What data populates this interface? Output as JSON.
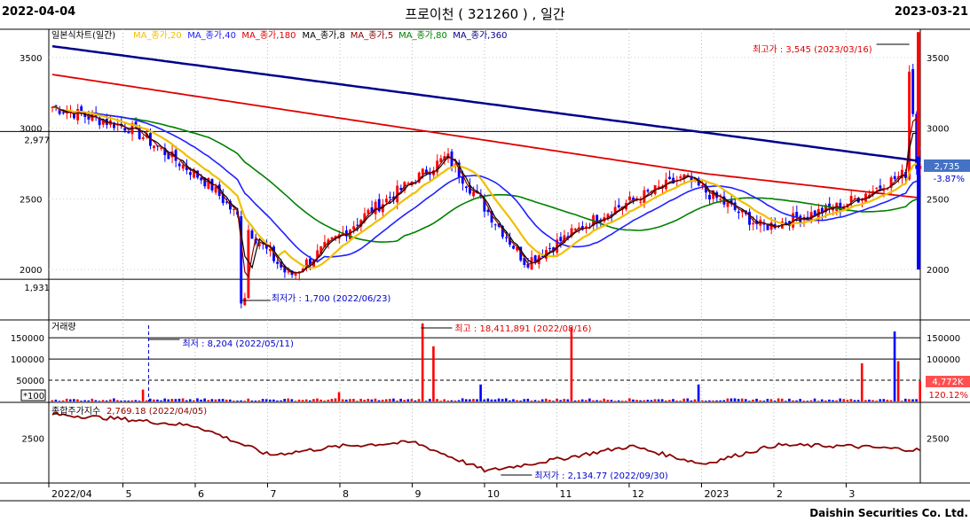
{
  "header": {
    "start_date": "2022-04-04",
    "title": "프로이천 ( 321260 ) , 일간",
    "end_date": "2023-03-21"
  },
  "footer": {
    "brand": "Daishin Securities Co. Ltd."
  },
  "colors": {
    "up": "#ff0000",
    "down": "#0000ff",
    "ma20": "#f0c000",
    "ma40": "#2020ff",
    "ma180": "#e00000",
    "ma8": "#000000",
    "ma5": "#8b0000",
    "ma80": "#008000",
    "ma360": "#00008b",
    "index": "#8b0000"
  },
  "chart_data": [
    {
      "type": "candlestick",
      "panel": "price",
      "title": "일본식차트(일간)",
      "legend": [
        "MA_종가,20",
        "MA_종가,40",
        "MA_종가,180",
        "MA_종가,8",
        "MA_종가,5",
        "MA_종가,80",
        "MA_종가,360"
      ],
      "y_ticks": [
        3500,
        3000,
        2500,
        2000
      ],
      "ylim": [
        1650,
        3700
      ],
      "ref_lines": [
        {
          "value": 2977,
          "label": "2,977"
        },
        {
          "value": 1931,
          "label": "1,931"
        }
      ],
      "annotations": {
        "high": "최고가 : 3,545 (2023/03/16)",
        "low": "최저가 : 1,700 (2022/06/23)",
        "last_price": "2,735",
        "change_pct": "-3.87%"
      },
      "x_labels": [
        "2022/04",
        "5",
        "6",
        "7",
        "8",
        "9",
        "10",
        "11",
        "12",
        "2023",
        "2",
        "3"
      ],
      "monthly_closes": [
        3150,
        3000,
        2600,
        1950,
        2400,
        2800,
        2050,
        2400,
        2650,
        2300,
        2450,
        2735
      ]
    },
    {
      "type": "bar",
      "panel": "volume",
      "title": "거래량",
      "y_ticks": [
        150000,
        100000,
        50000
      ],
      "ylim": [
        0,
        190000
      ],
      "ref_line": 50000,
      "scale_note": "*100",
      "annotations": {
        "min": "최저 : 8,204 (2022/05/11)",
        "max": "최고 : 18,411,891 (2022/08/16)",
        "last_volume": "4,772K",
        "change_pct": "120.12%"
      },
      "spikes": [
        {
          "label": "2022/05/16",
          "value": 28000
        },
        {
          "label": "2022/07/19",
          "value": 22000
        },
        {
          "label": "2022/08/16",
          "value": 184119
        },
        {
          "label": "2022/08/18",
          "value": 130000
        },
        {
          "label": "2022/09/05",
          "value": 40000
        },
        {
          "label": "2022/10/13",
          "value": 175000
        },
        {
          "label": "2022/11/30",
          "value": 40000
        },
        {
          "label": "2023/03/14",
          "value": 90000
        },
        {
          "label": "2023/03/16",
          "value": 165000
        },
        {
          "label": "2023/03/17",
          "value": 95000
        },
        {
          "label": "2023/03/21",
          "value": 47720
        }
      ]
    },
    {
      "type": "line",
      "panel": "index",
      "title": "종합주가지수",
      "y_ticks": [
        2500
      ],
      "ylim": [
        2050,
        2850
      ],
      "annotations": {
        "high": "2,769.18 (2022/04/05)",
        "low": "최저가 : 2,134.77 (2022/09/30)"
      }
    }
  ]
}
